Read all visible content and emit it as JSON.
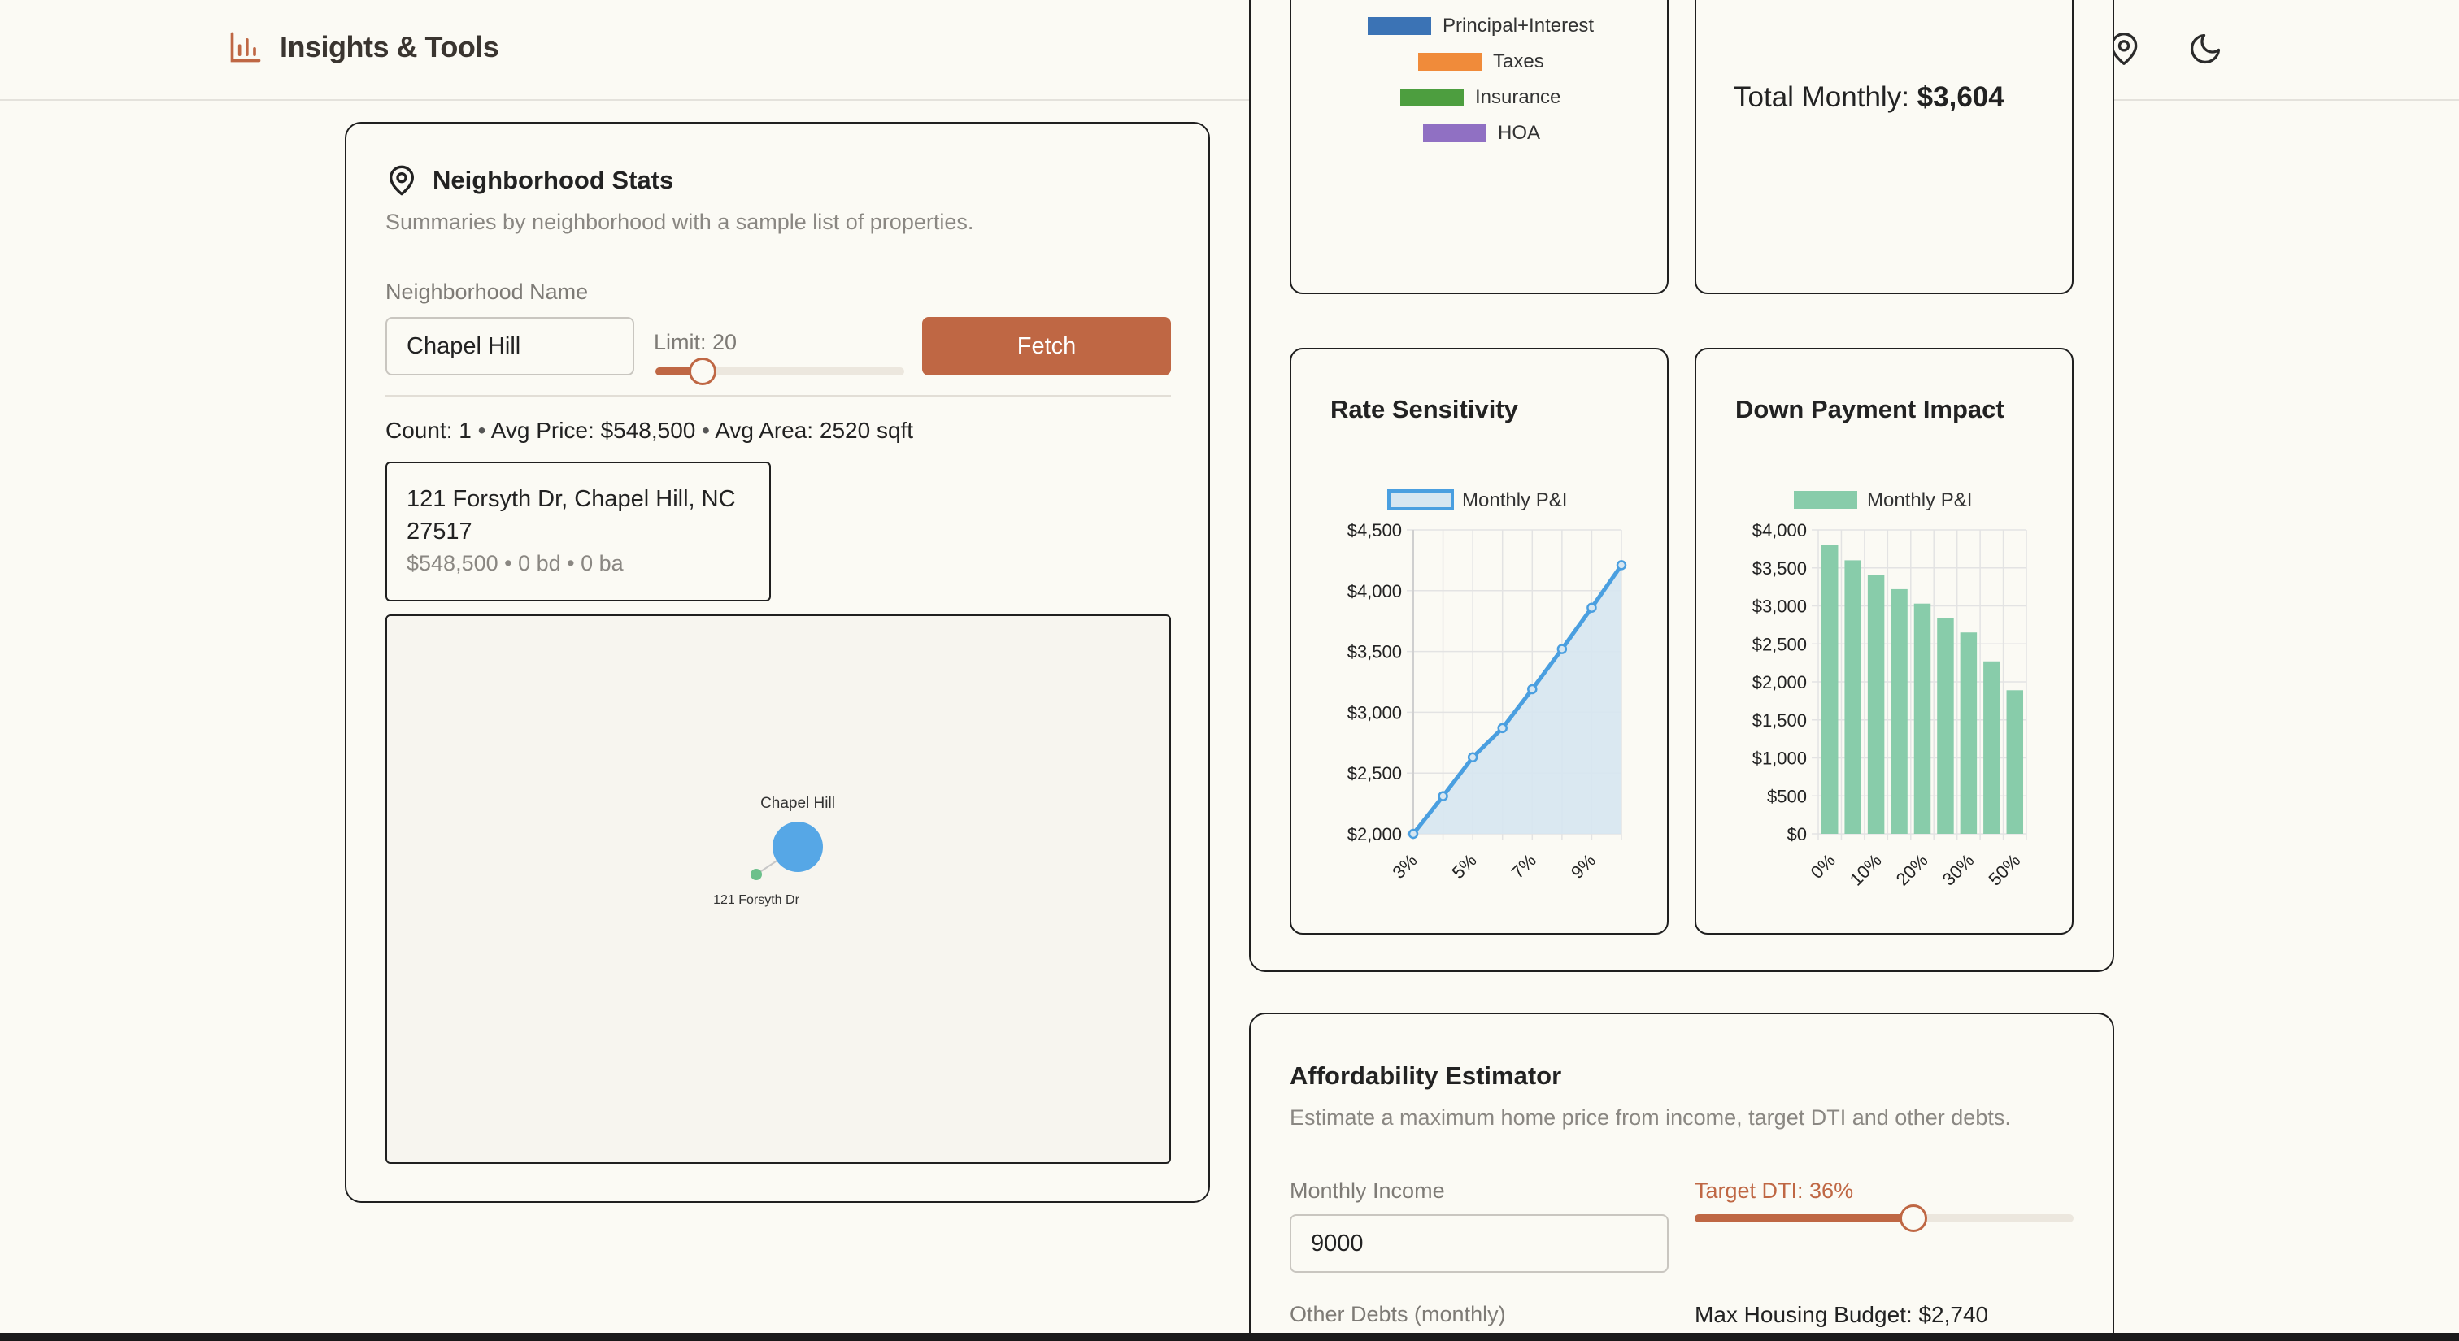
{
  "header": {
    "title": "Insights & Tools",
    "icons": [
      "chat-icon",
      "bar-chart-icon",
      "map-pin-icon",
      "moon-icon"
    ],
    "accent": "#bf6744"
  },
  "neighborhood": {
    "title": "Neighborhood Stats",
    "subtitle": "Summaries by neighborhood with a sample list of properties.",
    "name_label": "Neighborhood Name",
    "name_value": "Chapel Hill",
    "limit_label": "Limit: 20",
    "limit_value": 20,
    "fetch_label": "Fetch",
    "summary": {
      "count_label": "Count:",
      "count": "1",
      "price_label": "Avg Price:",
      "price": "$548,500",
      "area_label": "Avg Area:",
      "area": "2520 sqft",
      "sep": "•"
    },
    "property": {
      "address": "121 Forsyth Dr, Chapel Hill, NC 27517",
      "details": "$548,500 • 0 bd • 0 ba"
    },
    "graph": {
      "hub_label": "Chapel Hill",
      "node_label": "121 Forsyth Dr",
      "hub_color": "#56a7e6",
      "node_color": "#6cc08b"
    }
  },
  "breakdown": {
    "legend": [
      {
        "label": "Principal+Interest",
        "color": "#3b73b5"
      },
      {
        "label": "Taxes",
        "color": "#f08b3a"
      },
      {
        "label": "Insurance",
        "color": "#4d9e3f"
      },
      {
        "label": "HOA",
        "color": "#9070c3"
      }
    ],
    "total_label": "Total Monthly:",
    "total_value": "$3,604"
  },
  "chart_data": [
    {
      "type": "line",
      "title": "Rate Sensitivity",
      "series": [
        {
          "name": "Monthly P&I",
          "color": "#4a9fe0",
          "fill": "#d6e6f1",
          "values": [
            2000,
            2310,
            2630,
            2870,
            3190,
            3520,
            3860,
            4210
          ]
        }
      ],
      "x": [
        "3%",
        "4%",
        "5%",
        "6%",
        "7%",
        "8%",
        "9%",
        "10%"
      ],
      "x_tick_labels": [
        "3%",
        "5%",
        "7%",
        "9%"
      ],
      "y_ticks": [
        "$4,500",
        "$4,000",
        "$3,500",
        "$3,000",
        "$2,500",
        "$2,000"
      ],
      "ylim": [
        2000,
        4500
      ],
      "grid": true
    },
    {
      "type": "bar",
      "title": "Down Payment Impact",
      "series": [
        {
          "name": "Monthly P&I",
          "color": "#88ccaa",
          "values": [
            3800,
            3600,
            3410,
            3220,
            3030,
            2840,
            2650,
            2270,
            1890
          ]
        }
      ],
      "categories": [
        "0%",
        "5%",
        "10%",
        "15%",
        "20%",
        "25%",
        "30%",
        "40%",
        "50%"
      ],
      "x_tick_labels": [
        "0%",
        "10%",
        "20%",
        "30%",
        "50%"
      ],
      "y_ticks": [
        "$4,000",
        "$3,500",
        "$3,000",
        "$2,500",
        "$2,000",
        "$1,500",
        "$1,000",
        "$500",
        "$0"
      ],
      "ylim": [
        0,
        4000
      ],
      "grid": true
    }
  ],
  "affordability": {
    "title": "Affordability Estimator",
    "subtitle": "Estimate a maximum home price from income, target DTI and other debts.",
    "income_label": "Monthly Income",
    "income_value": "9000",
    "dti_label": "Target DTI: 36%",
    "dti_value": 36,
    "debts_label": "Other Debts (monthly)",
    "budget_label": "Max Housing Budget: $2,740"
  }
}
